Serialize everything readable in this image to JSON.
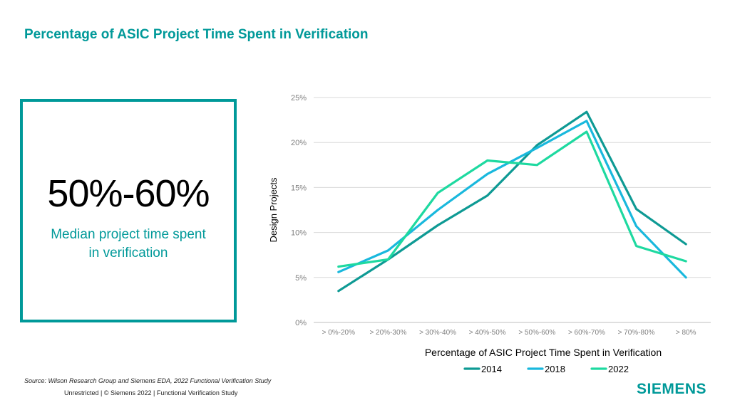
{
  "title": "Percentage of ASIC Project Time Spent in Verification",
  "stat": {
    "value": "50%-60%",
    "label_line1": "Median project time spent",
    "label_line2": "in verification"
  },
  "source": "Source:  Wilson Research Group and Siemens EDA, 2022 Functional Verification Study",
  "footer": "Unrestricted | © Siemens 2022 |  Functional Verification Study",
  "logo": "SIEMENS",
  "colors": {
    "accent": "#009999",
    "s2014": "#0E9A94",
    "s2018": "#19B8DD",
    "s2022": "#1ED9A0"
  },
  "chart_data": {
    "type": "line",
    "title": "",
    "xlabel": "Percentage of ASIC Project Time Spent in Verification",
    "ylabel": "Design Projects",
    "categories": [
      "> 0%-20%",
      "> 20%-30%",
      "> 30%-40%",
      "> 40%-50%",
      "> 50%-60%",
      "> 60%-70%",
      "> 70%-80%",
      "> 80%"
    ],
    "ylim": [
      0,
      25
    ],
    "yticks": [
      0,
      5,
      10,
      15,
      20,
      25
    ],
    "ytick_labels": [
      "0%",
      "5%",
      "10%",
      "15%",
      "20%",
      "25%"
    ],
    "grid": true,
    "legend_position": "bottom",
    "series": [
      {
        "name": "2014",
        "color": "#0E9A94",
        "values": [
          3.5,
          7.0,
          10.8,
          14.1,
          19.7,
          23.4,
          12.6,
          8.7
        ]
      },
      {
        "name": "2018",
        "color": "#19B8DD",
        "values": [
          5.6,
          8.0,
          12.5,
          16.5,
          19.4,
          22.4,
          10.7,
          5.0
        ]
      },
      {
        "name": "2022",
        "color": "#1ED9A0",
        "values": [
          6.2,
          7.0,
          14.4,
          18.0,
          17.5,
          21.2,
          8.5,
          6.8
        ]
      }
    ]
  }
}
